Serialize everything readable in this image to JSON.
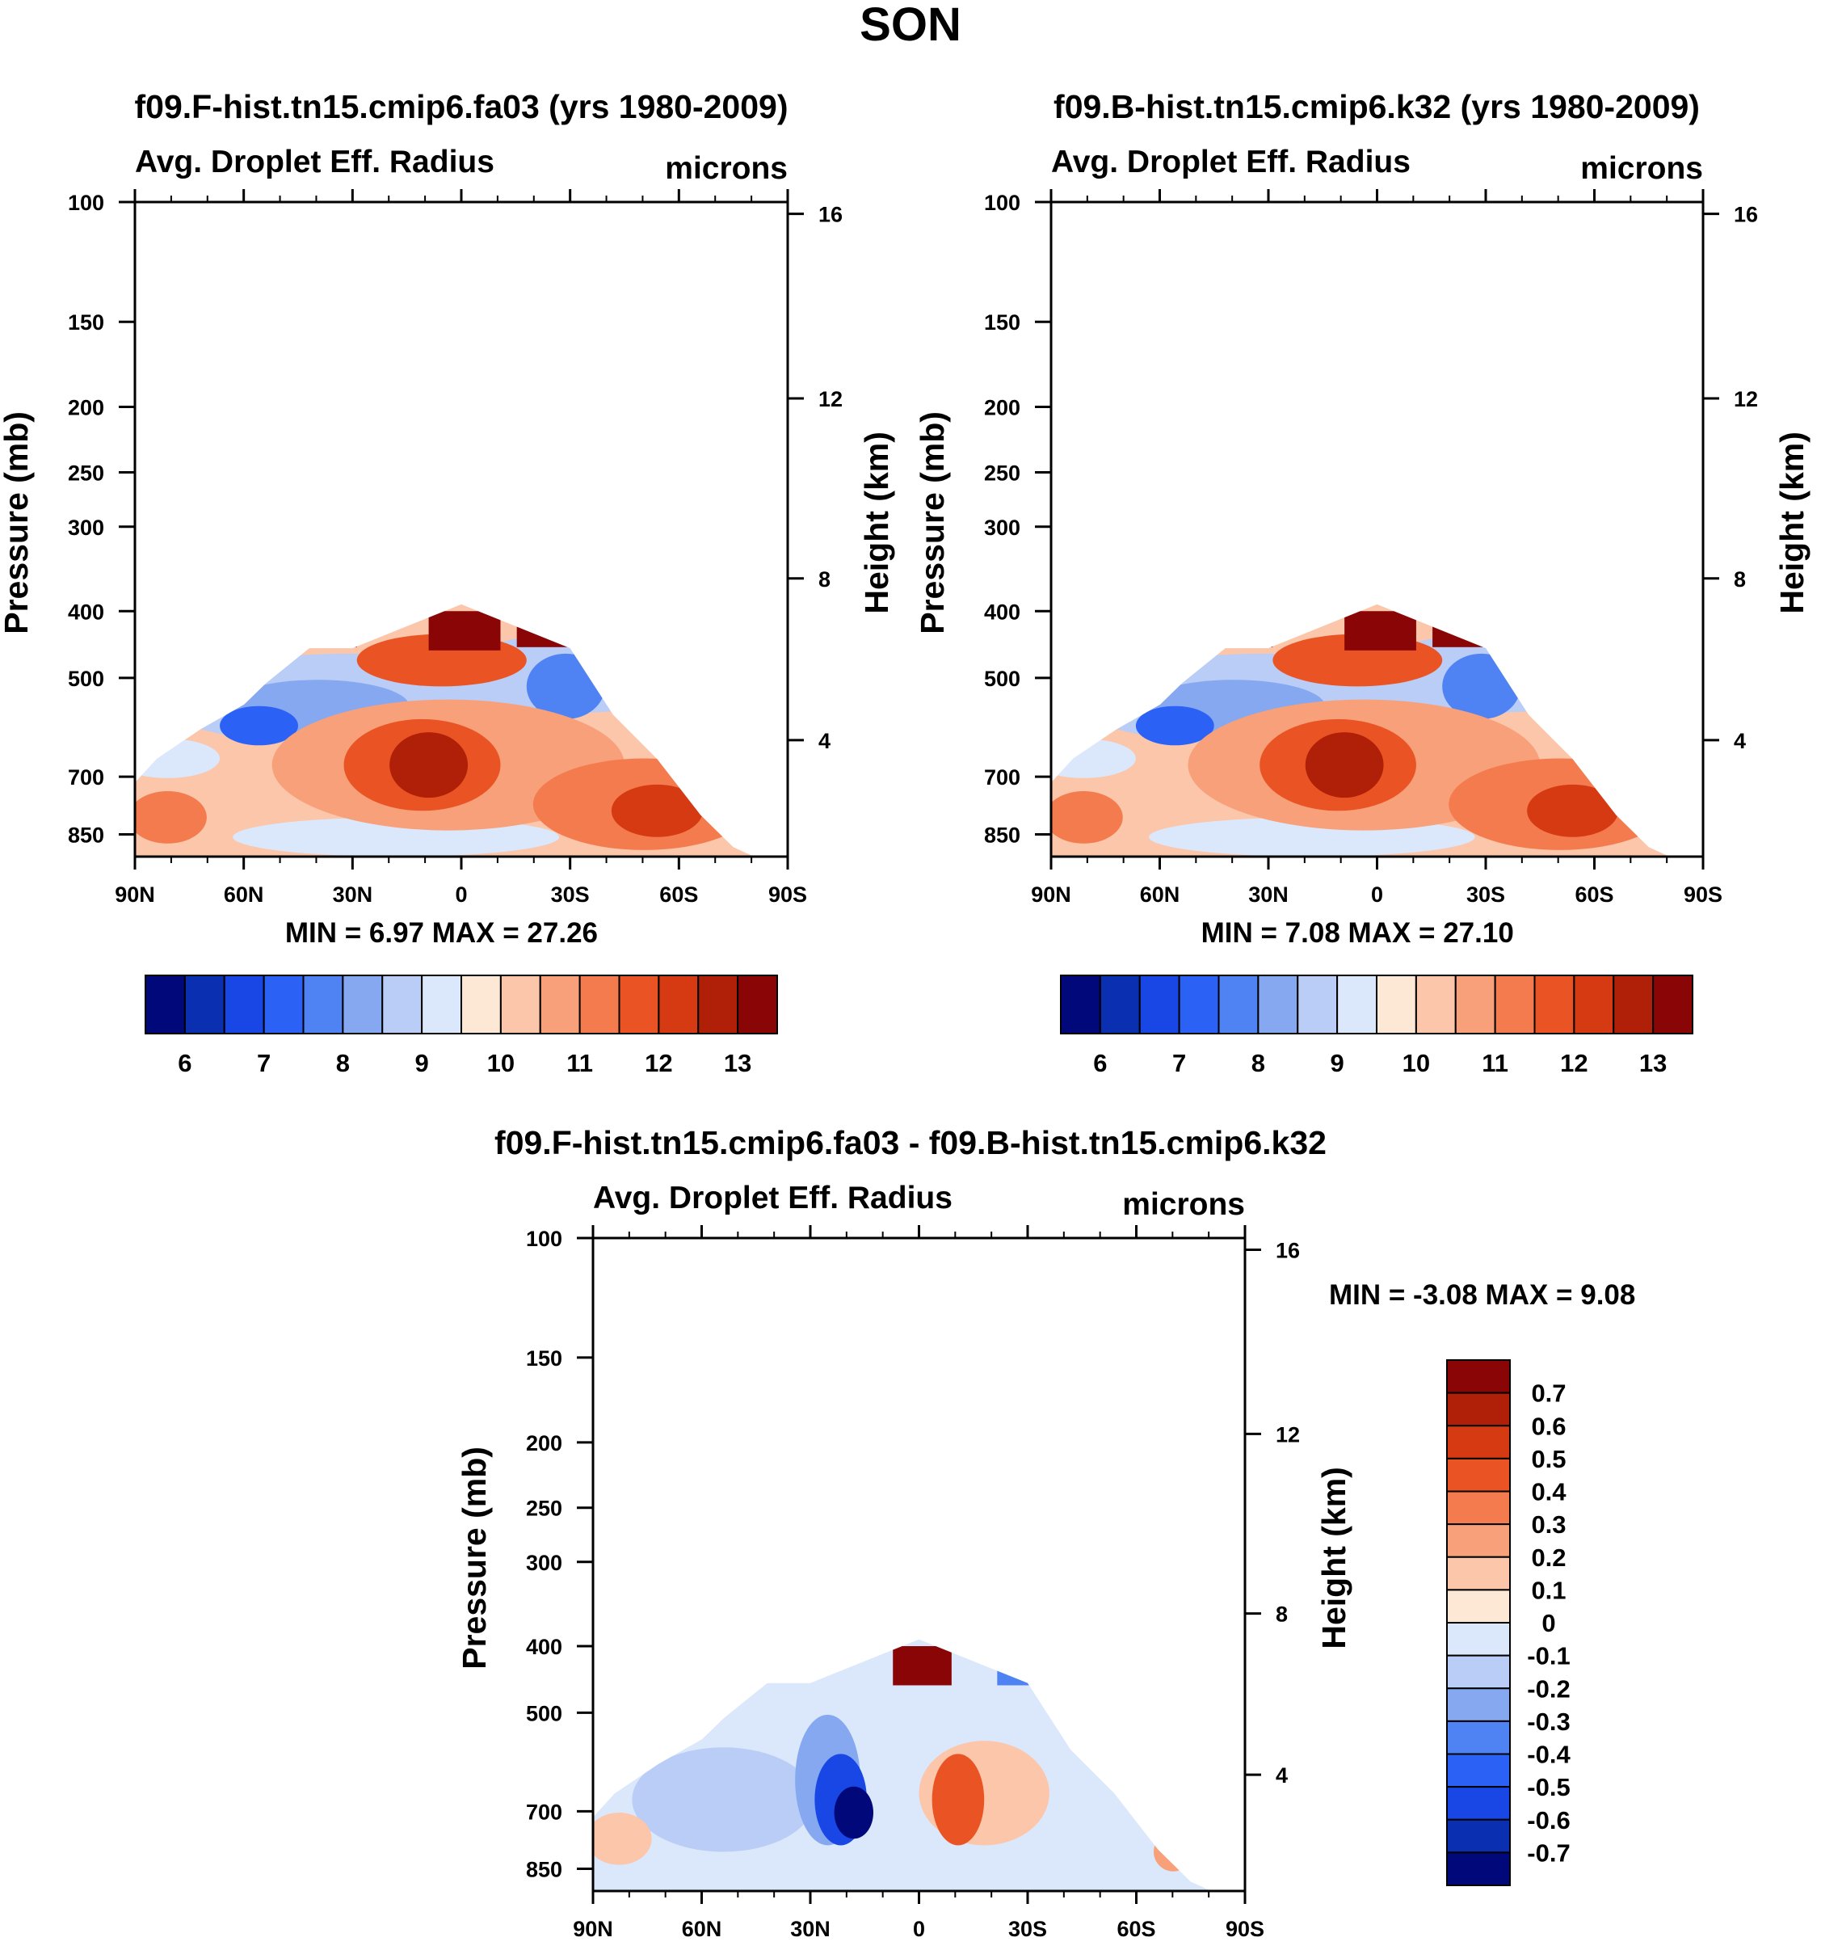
{
  "page": {
    "title": "SON"
  },
  "chart_data": [
    {
      "type": "heatmap",
      "title": "f09.F-hist.tn15.cmip6.fa03 (yrs 1980-2009)",
      "subtitle_left": "Avg. Droplet Eff. Radius",
      "subtitle_right": "microns",
      "ylabel": "Pressure (mb)",
      "ylabel_right": "Height (km)",
      "y_ticks": [
        "100",
        "150",
        "200",
        "250",
        "300",
        "400",
        "500",
        "700",
        "850"
      ],
      "y_ticks_right": [
        "16",
        "12",
        "8",
        "4"
      ],
      "x_ticks": [
        "90N",
        "60N",
        "30N",
        "0",
        "30S",
        "60S",
        "90S"
      ],
      "min_label": "MIN =",
      "min_value": "6.97",
      "max_label": "MAX =",
      "max_value": "27.26",
      "colorbar_labels": [
        "6",
        "7",
        "8",
        "9",
        "10",
        "11",
        "12",
        "13"
      ],
      "colorbar_orientation": "horizontal"
    },
    {
      "type": "heatmap",
      "title": "f09.B-hist.tn15.cmip6.k32 (yrs 1980-2009)",
      "subtitle_left": "Avg. Droplet Eff. Radius",
      "subtitle_right": "microns",
      "ylabel": "Pressure (mb)",
      "ylabel_right": "Height (km)",
      "y_ticks": [
        "100",
        "150",
        "200",
        "250",
        "300",
        "400",
        "500",
        "700",
        "850"
      ],
      "y_ticks_right": [
        "16",
        "12",
        "8",
        "4"
      ],
      "x_ticks": [
        "90N",
        "60N",
        "30N",
        "0",
        "30S",
        "60S",
        "90S"
      ],
      "min_label": "MIN =",
      "min_value": "7.08",
      "max_label": "MAX =",
      "max_value": "27.10",
      "colorbar_labels": [
        "6",
        "7",
        "8",
        "9",
        "10",
        "11",
        "12",
        "13"
      ],
      "colorbar_orientation": "horizontal"
    },
    {
      "type": "heatmap",
      "title": "f09.F-hist.tn15.cmip6.fa03 - f09.B-hist.tn15.cmip6.k32",
      "subtitle_left": "Avg. Droplet Eff. Radius",
      "subtitle_right": "microns",
      "ylabel": "Pressure (mb)",
      "ylabel_right": "Height (km)",
      "y_ticks": [
        "100",
        "150",
        "200",
        "250",
        "300",
        "400",
        "500",
        "700",
        "850"
      ],
      "y_ticks_right": [
        "16",
        "12",
        "8",
        "4"
      ],
      "x_ticks": [
        "90N",
        "60N",
        "30N",
        "0",
        "30S",
        "60S",
        "90S"
      ],
      "min_label": "MIN =",
      "min_value": "-3.08",
      "max_label": "MAX =",
      "max_value": "9.08",
      "colorbar_labels": [
        "0.7",
        "0.6",
        "0.5",
        "0.4",
        "0.3",
        "0.2",
        "0.1",
        "0",
        "-0.1",
        "-0.2",
        "-0.3",
        "-0.4",
        "-0.5",
        "-0.6",
        "-0.7"
      ],
      "colorbar_orientation": "vertical"
    }
  ],
  "palette": [
    "#00087a",
    "#0a2fb0",
    "#1847e6",
    "#2c61f5",
    "#4f82f2",
    "#85a8f0",
    "#b9cdf7",
    "#dbe8fb",
    "#fde8d6",
    "#fbc6aa",
    "#f8a07a",
    "#f37b4e",
    "#ea5424",
    "#d63a12",
    "#b02008",
    "#8a0606"
  ]
}
